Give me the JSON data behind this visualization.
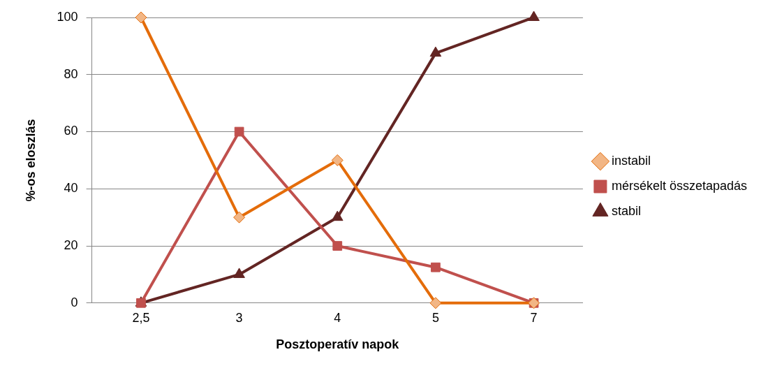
{
  "chart_data": {
    "type": "line",
    "xlabel": "Posztoperatív napok",
    "ylabel": "%-os eloszlás",
    "categories": [
      "2,5",
      "3",
      "4",
      "5",
      "7"
    ],
    "ylim": [
      0,
      100
    ],
    "yticks": [
      0,
      20,
      40,
      60,
      80,
      100
    ],
    "grid": "y",
    "legend": "right",
    "series": [
      {
        "name": "instabil",
        "color": "#e46c0a",
        "marker": "diamond",
        "values": [
          100,
          30,
          50,
          0,
          0
        ]
      },
      {
        "name": "mérsékelt összetapadás",
        "color": "#c0504d",
        "marker": "square",
        "values": [
          0,
          60,
          20,
          12.5,
          0
        ]
      },
      {
        "name": "stabil",
        "color": "#632523",
        "marker": "triangle",
        "values": [
          0,
          10,
          30,
          87.5,
          100
        ]
      }
    ]
  }
}
